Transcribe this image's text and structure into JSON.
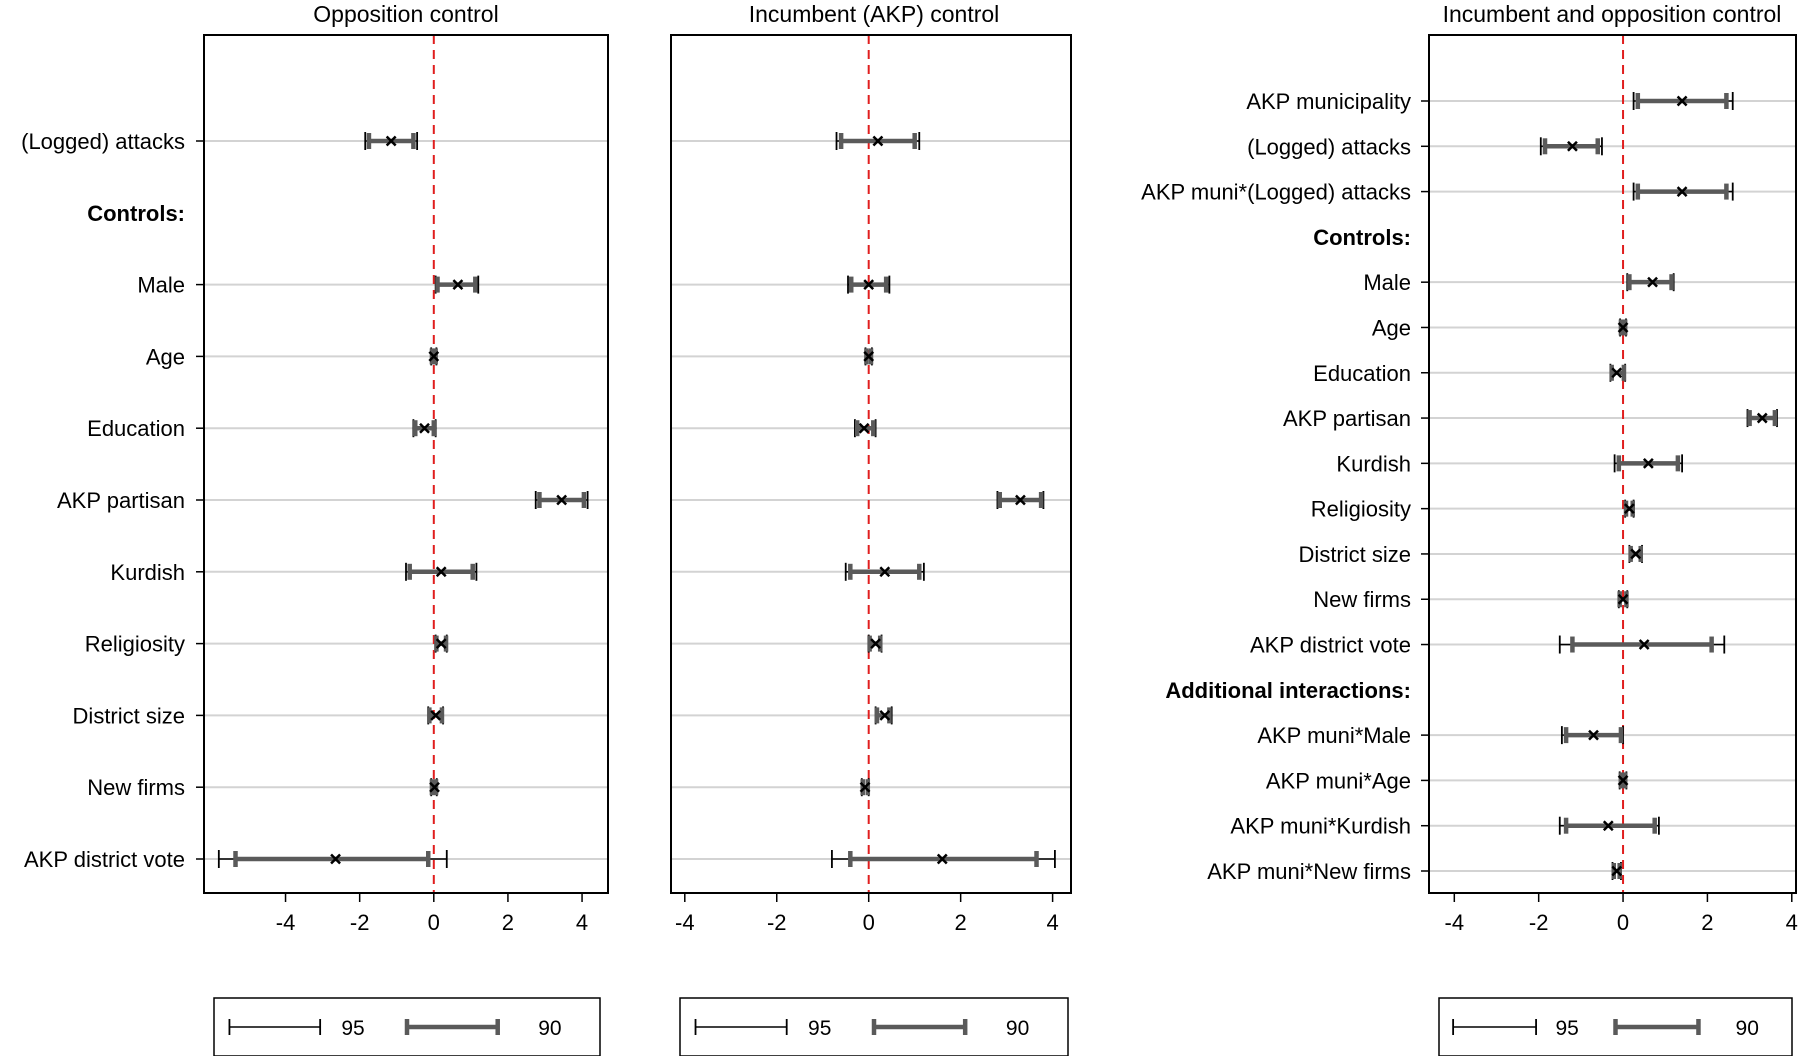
{
  "chart_data": [
    {
      "type": "coefficient-plot",
      "title": "Opposition control",
      "xticks": [
        -4,
        -2,
        0,
        2,
        4
      ],
      "xlim": [
        -6.2,
        4.7
      ],
      "reference_line": 0,
      "rows": [
        {
          "label": "(Logged) attacks",
          "coef": -1.15,
          "ci95": [
            -1.85,
            -0.45
          ],
          "ci90": [
            -1.75,
            -0.55
          ]
        },
        {
          "label": "Controls:",
          "header": true
        },
        {
          "label": "Male",
          "coef": 0.65,
          "ci95": [
            0.05,
            1.2
          ],
          "ci90": [
            0.1,
            1.12
          ]
        },
        {
          "label": "Age",
          "coef": 0.0,
          "ci95": [
            -0.07,
            0.07
          ],
          "ci90": [
            -0.05,
            0.05
          ]
        },
        {
          "label": "Education",
          "coef": -0.25,
          "ci95": [
            -0.55,
            0.05
          ],
          "ci90": [
            -0.5,
            0.0
          ]
        },
        {
          "label": "AKP partisan",
          "coef": 3.45,
          "ci95": [
            2.75,
            4.15
          ],
          "ci90": [
            2.85,
            4.05
          ]
        },
        {
          "label": "Kurdish",
          "coef": 0.2,
          "ci95": [
            -0.75,
            1.15
          ],
          "ci90": [
            -0.65,
            1.05
          ]
        },
        {
          "label": "Religiosity",
          "coef": 0.2,
          "ci95": [
            0.05,
            0.35
          ],
          "ci90": [
            0.07,
            0.33
          ]
        },
        {
          "label": "District size",
          "coef": 0.05,
          "ci95": [
            -0.15,
            0.25
          ],
          "ci90": [
            -0.12,
            0.22
          ]
        },
        {
          "label": "New firms",
          "coef": 0.02,
          "ci95": [
            -0.07,
            0.08
          ],
          "ci90": [
            -0.05,
            0.06
          ]
        },
        {
          "label": "AKP district vote",
          "coef": -2.65,
          "ci95": [
            -5.8,
            0.35
          ],
          "ci90": [
            -5.35,
            -0.15
          ]
        }
      ]
    },
    {
      "type": "coefficient-plot",
      "title": "Incumbent (AKP) control",
      "xticks": [
        -4,
        -2,
        0,
        2,
        4
      ],
      "xlim": [
        -4.3,
        4.4
      ],
      "reference_line": 0,
      "rows": [
        {
          "label": "(Logged) attacks",
          "coef": 0.2,
          "ci95": [
            -0.7,
            1.1
          ],
          "ci90": [
            -0.6,
            1.0
          ]
        },
        {
          "label": "Controls:",
          "header": true
        },
        {
          "label": "Male",
          "coef": 0.0,
          "ci95": [
            -0.45,
            0.45
          ],
          "ci90": [
            -0.38,
            0.38
          ]
        },
        {
          "label": "Age",
          "coef": 0.0,
          "ci95": [
            -0.07,
            0.07
          ],
          "ci90": [
            -0.05,
            0.05
          ]
        },
        {
          "label": "Education",
          "coef": -0.1,
          "ci95": [
            -0.3,
            0.15
          ],
          "ci90": [
            -0.25,
            0.1
          ]
        },
        {
          "label": "AKP partisan",
          "coef": 3.3,
          "ci95": [
            2.8,
            3.8
          ],
          "ci90": [
            2.85,
            3.75
          ]
        },
        {
          "label": "Kurdish",
          "coef": 0.35,
          "ci95": [
            -0.5,
            1.2
          ],
          "ci90": [
            -0.4,
            1.1
          ]
        },
        {
          "label": "Religiosity",
          "coef": 0.15,
          "ci95": [
            0.0,
            0.28
          ],
          "ci90": [
            0.02,
            0.25
          ]
        },
        {
          "label": "District size",
          "coef": 0.35,
          "ci95": [
            0.15,
            0.5
          ],
          "ci90": [
            0.18,
            0.45
          ]
        },
        {
          "label": "New firms",
          "coef": -0.08,
          "ci95": [
            -0.15,
            0.0
          ],
          "ci90": [
            -0.13,
            -0.02
          ]
        },
        {
          "label": "AKP district vote",
          "coef": 1.6,
          "ci95": [
            -0.8,
            4.05
          ],
          "ci90": [
            -0.4,
            3.65
          ]
        }
      ]
    },
    {
      "type": "coefficient-plot",
      "title": "Incumbent and opposition control",
      "xticks": [
        -4,
        -2,
        0,
        2,
        4
      ],
      "xlim": [
        -4.6,
        4.1
      ],
      "reference_line": 0,
      "rows": [
        {
          "label": "AKP municipality",
          "coef": 1.4,
          "ci95": [
            0.25,
            2.6
          ],
          "ci90": [
            0.35,
            2.45
          ]
        },
        {
          "label": "(Logged) attacks",
          "coef": -1.2,
          "ci95": [
            -1.95,
            -0.5
          ],
          "ci90": [
            -1.85,
            -0.6
          ]
        },
        {
          "label": "AKP muni*(Logged) attacks",
          "coef": 1.4,
          "ci95": [
            0.25,
            2.6
          ],
          "ci90": [
            0.35,
            2.45
          ]
        },
        {
          "label": "Controls:",
          "header": true
        },
        {
          "label": "Male",
          "coef": 0.7,
          "ci95": [
            0.1,
            1.2
          ],
          "ci90": [
            0.15,
            1.15
          ]
        },
        {
          "label": "Age",
          "coef": 0.0,
          "ci95": [
            -0.07,
            0.07
          ],
          "ci90": [
            -0.05,
            0.05
          ]
        },
        {
          "label": "Education",
          "coef": -0.15,
          "ci95": [
            -0.3,
            0.05
          ],
          "ci90": [
            -0.27,
            0.02
          ]
        },
        {
          "label": "AKP partisan",
          "coef": 3.3,
          "ci95": [
            2.95,
            3.65
          ],
          "ci90": [
            3.0,
            3.6
          ]
        },
        {
          "label": "Kurdish",
          "coef": 0.6,
          "ci95": [
            -0.2,
            1.4
          ],
          "ci90": [
            -0.1,
            1.3
          ]
        },
        {
          "label": "Religiosity",
          "coef": 0.15,
          "ci95": [
            0.05,
            0.25
          ],
          "ci90": [
            0.07,
            0.23
          ]
        },
        {
          "label": "District size",
          "coef": 0.3,
          "ci95": [
            0.15,
            0.45
          ],
          "ci90": [
            0.18,
            0.42
          ]
        },
        {
          "label": "New firms",
          "coef": 0.0,
          "ci95": [
            -0.1,
            0.1
          ],
          "ci90": [
            -0.08,
            0.08
          ]
        },
        {
          "label": "AKP district vote",
          "coef": 0.5,
          "ci95": [
            -1.5,
            2.4
          ],
          "ci90": [
            -1.2,
            2.1
          ]
        },
        {
          "label": "Additional interactions:",
          "header": true
        },
        {
          "label": "AKP muni*Male",
          "coef": -0.7,
          "ci95": [
            -1.45,
            0.0
          ],
          "ci90": [
            -1.35,
            -0.05
          ]
        },
        {
          "label": "AKP muni*Age",
          "coef": 0.0,
          "ci95": [
            -0.08,
            0.08
          ],
          "ci90": [
            -0.05,
            0.05
          ]
        },
        {
          "label": "AKP muni*Kurdish",
          "coef": -0.35,
          "ci95": [
            -1.5,
            0.85
          ],
          "ci90": [
            -1.35,
            0.75
          ]
        },
        {
          "label": "AKP muni*New firms",
          "coef": -0.15,
          "ci95": [
            -0.25,
            -0.05
          ],
          "ci90": [
            -0.22,
            -0.08
          ]
        }
      ]
    }
  ],
  "legend": {
    "ci95_label": "95",
    "ci90_label": "90"
  },
  "colors": {
    "grid": "#d3d3d3",
    "refline": "#e01e1e",
    "ci90": "#5a5a5a",
    "ci95": "#000000",
    "marker": "#000000"
  }
}
